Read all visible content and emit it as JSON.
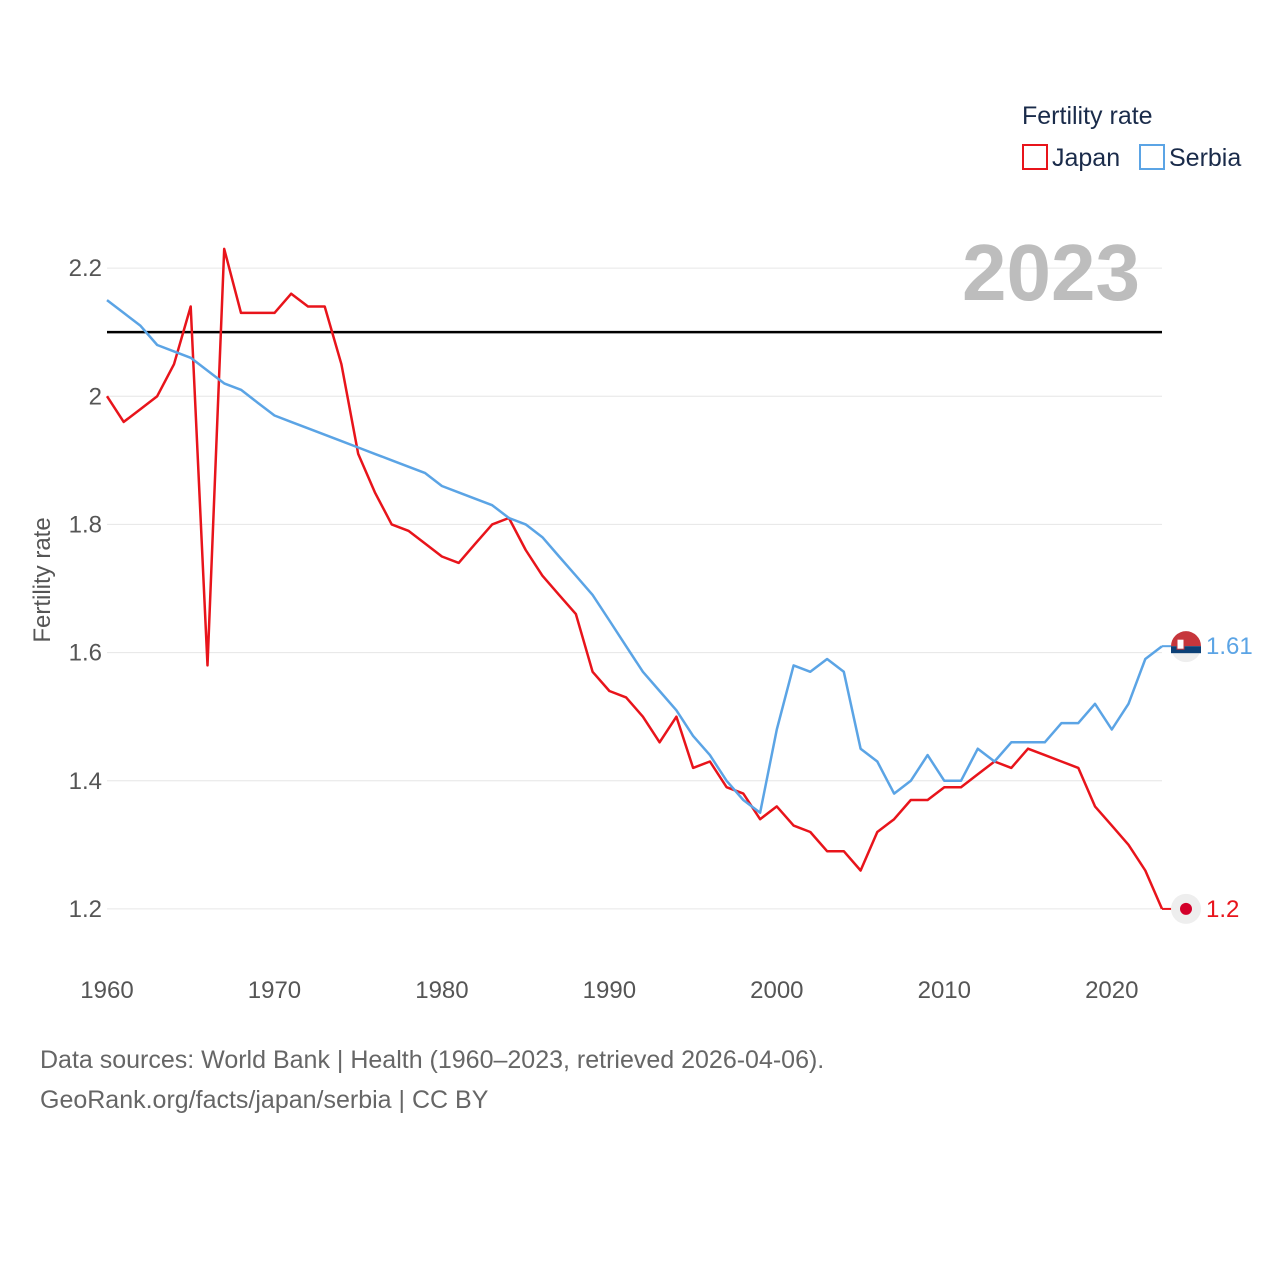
{
  "chart_data": {
    "type": "line",
    "title": "",
    "year_label": "2023",
    "legend_title": "Fertility rate",
    "ylabel": "Fertility rate",
    "xlabel": "",
    "xlim": [
      1960,
      2023
    ],
    "ylim": [
      1.1,
      2.3
    ],
    "x_ticks": [
      1960,
      1970,
      1980,
      1990,
      2000,
      2010,
      2020
    ],
    "y_ticks": [
      1.2,
      1.4,
      1.6,
      1.8,
      2.0,
      2.2
    ],
    "y_tick_labels": [
      "1.2",
      "1.4",
      "1.6",
      "1.8",
      "2",
      "2.2"
    ],
    "reference_line": 2.1,
    "x": [
      1960,
      1961,
      1962,
      1963,
      1964,
      1965,
      1966,
      1967,
      1968,
      1969,
      1970,
      1971,
      1972,
      1973,
      1974,
      1975,
      1976,
      1977,
      1978,
      1979,
      1980,
      1981,
      1982,
      1983,
      1984,
      1985,
      1986,
      1987,
      1988,
      1989,
      1990,
      1991,
      1992,
      1993,
      1994,
      1995,
      1996,
      1997,
      1998,
      1999,
      2000,
      2001,
      2002,
      2003,
      2004,
      2005,
      2006,
      2007,
      2008,
      2009,
      2010,
      2011,
      2012,
      2013,
      2014,
      2015,
      2016,
      2017,
      2018,
      2019,
      2020,
      2021,
      2022,
      2023
    ],
    "series": [
      {
        "name": "Japan",
        "color": "#e8141b",
        "end_label": "1.2",
        "flag": "japan-flag",
        "values": [
          2.0,
          1.96,
          1.98,
          2.0,
          2.05,
          2.14,
          1.58,
          2.23,
          2.13,
          2.13,
          2.13,
          2.16,
          2.14,
          2.14,
          2.05,
          1.91,
          1.85,
          1.8,
          1.79,
          1.77,
          1.75,
          1.74,
          1.77,
          1.8,
          1.81,
          1.76,
          1.72,
          1.69,
          1.66,
          1.57,
          1.54,
          1.53,
          1.5,
          1.46,
          1.5,
          1.42,
          1.43,
          1.39,
          1.38,
          1.34,
          1.36,
          1.33,
          1.32,
          1.29,
          1.29,
          1.26,
          1.32,
          1.34,
          1.37,
          1.37,
          1.39,
          1.39,
          1.41,
          1.43,
          1.42,
          1.45,
          1.44,
          1.43,
          1.42,
          1.36,
          1.33,
          1.3,
          1.26,
          1.2
        ]
      },
      {
        "name": "Serbia",
        "color": "#5ba4e5",
        "end_label": "1.61",
        "flag": "serbia-flag",
        "values": [
          2.15,
          2.13,
          2.11,
          2.08,
          2.07,
          2.06,
          2.04,
          2.02,
          2.01,
          1.99,
          1.97,
          1.96,
          1.95,
          1.94,
          1.93,
          1.92,
          1.91,
          1.9,
          1.89,
          1.88,
          1.86,
          1.85,
          1.84,
          1.83,
          1.81,
          1.8,
          1.78,
          1.75,
          1.72,
          1.69,
          1.65,
          1.61,
          1.57,
          1.54,
          1.51,
          1.47,
          1.44,
          1.4,
          1.37,
          1.35,
          1.48,
          1.58,
          1.57,
          1.59,
          1.57,
          1.45,
          1.43,
          1.38,
          1.4,
          1.44,
          1.4,
          1.4,
          1.45,
          1.43,
          1.46,
          1.46,
          1.46,
          1.49,
          1.49,
          1.52,
          1.48,
          1.52,
          1.59,
          1.61
        ]
      }
    ]
  },
  "source": {
    "line1": "Data sources: World Bank | Health (1960–2023, retrieved 2026-04-06).",
    "line2": "GeoRank.org/facts/japan/serbia | CC BY"
  }
}
